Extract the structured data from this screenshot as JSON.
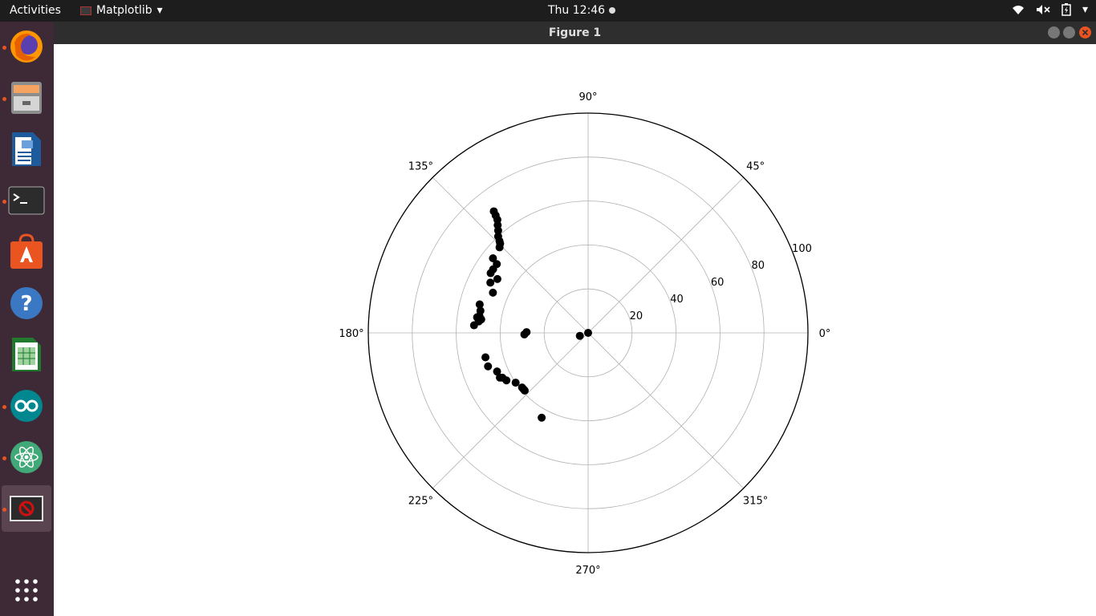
{
  "topbar": {
    "activities": "Activities",
    "app_menu": "Matplotlib",
    "clock": "Thu 12:46"
  },
  "dock": {
    "items": [
      {
        "name": "firefox",
        "running": true
      },
      {
        "name": "files",
        "running": true
      },
      {
        "name": "libreoffice-writer",
        "running": false
      },
      {
        "name": "terminal",
        "running": true
      },
      {
        "name": "ubuntu-software",
        "running": false
      },
      {
        "name": "help",
        "running": false
      },
      {
        "name": "libreoffice-calc",
        "running": false
      },
      {
        "name": "arduino",
        "running": true
      },
      {
        "name": "atom",
        "running": true
      },
      {
        "name": "matplotlib-figure",
        "running": true
      }
    ]
  },
  "window": {
    "title": "Figure 1"
  },
  "chart_data": {
    "type": "scatter",
    "projection": "polar",
    "theta_ticks": [
      "0°",
      "45°",
      "90°",
      "135°",
      "180°",
      "225°",
      "270°",
      "315°"
    ],
    "r_ticks": [
      "20",
      "40",
      "60",
      "80",
      "100"
    ],
    "r_max": 100,
    "grid": true,
    "marker_color": "#000000",
    "points": [
      {
        "theta": 0,
        "r": 0
      },
      {
        "theta": 200,
        "r": 4
      },
      {
        "theta": 127.8,
        "r": 70
      },
      {
        "theta": 128.2,
        "r": 68
      },
      {
        "theta": 128.7,
        "r": 66
      },
      {
        "theta": 130.0,
        "r": 64
      },
      {
        "theta": 131.3,
        "r": 62
      },
      {
        "theta": 133.0,
        "r": 60
      },
      {
        "theta": 134.0,
        "r": 58
      },
      {
        "theta": 134.6,
        "r": 57
      },
      {
        "theta": 136.0,
        "r": 56
      },
      {
        "theta": 141.9,
        "r": 55
      },
      {
        "theta": 143.0,
        "r": 52
      },
      {
        "theta": 146.2,
        "r": 52
      },
      {
        "theta": 148.5,
        "r": 52
      },
      {
        "theta": 149.3,
        "r": 48
      },
      {
        "theta": 152.8,
        "r": 50
      },
      {
        "theta": 157.1,
        "r": 47
      },
      {
        "theta": 165.3,
        "r": 51
      },
      {
        "theta": 168.4,
        "r": 50
      },
      {
        "theta": 171.2,
        "r": 50
      },
      {
        "theta": 172.0,
        "r": 51
      },
      {
        "theta": 172.8,
        "r": 49
      },
      {
        "theta": 174.0,
        "r": 50
      },
      {
        "theta": 176.2,
        "r": 52
      },
      {
        "theta": 179.3,
        "r": 28
      },
      {
        "theta": 181.4,
        "r": 29
      },
      {
        "theta": 193.4,
        "r": 48
      },
      {
        "theta": 198.5,
        "r": 48
      },
      {
        "theta": 203.0,
        "r": 45
      },
      {
        "theta": 206.9,
        "r": 45
      },
      {
        "theta": 207.6,
        "r": 44
      },
      {
        "theta": 210.2,
        "r": 43
      },
      {
        "theta": 214.5,
        "r": 40
      },
      {
        "theta": 219.6,
        "r": 39
      },
      {
        "theta": 221.1,
        "r": 39
      },
      {
        "theta": 222.3,
        "r": 39
      },
      {
        "theta": 241.3,
        "r": 44
      }
    ]
  }
}
